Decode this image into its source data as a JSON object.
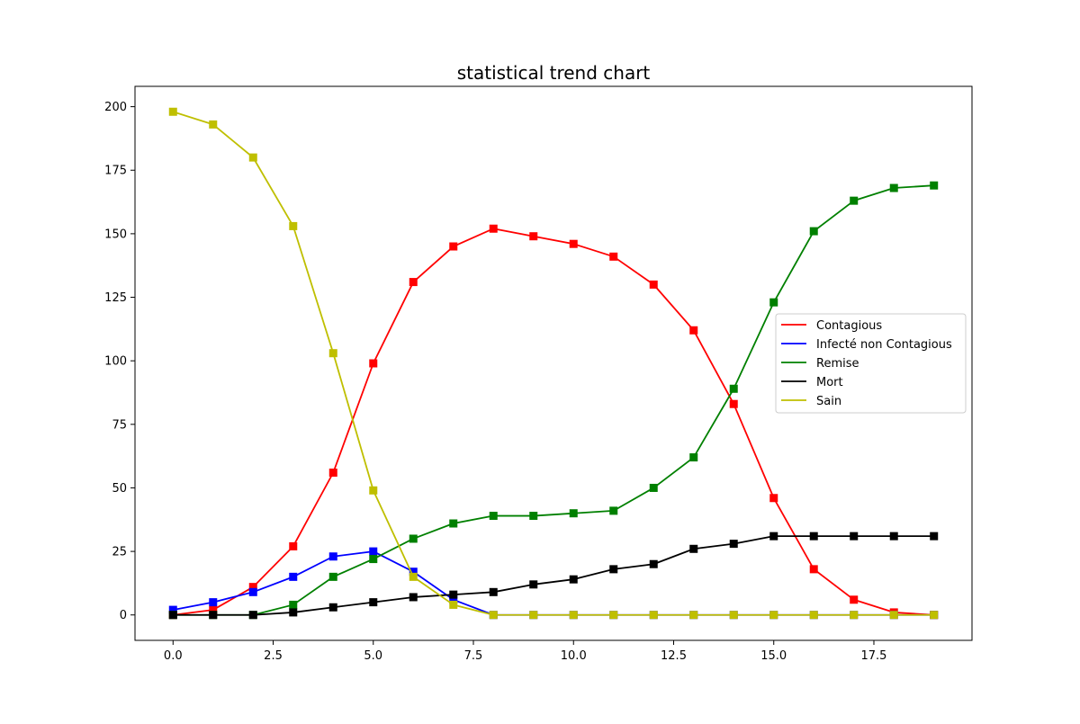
{
  "chart_data": {
    "type": "line",
    "title": "statistical trend chart",
    "xlabel": "",
    "ylabel": "",
    "xlim": [
      -0.95,
      19.95
    ],
    "ylim": [
      -10,
      208
    ],
    "x_ticks": [
      0.0,
      2.5,
      5.0,
      7.5,
      10.0,
      12.5,
      15.0,
      17.5
    ],
    "x_tick_labels": [
      "0.0",
      "2.5",
      "5.0",
      "7.5",
      "10.0",
      "12.5",
      "15.0",
      "17.5"
    ],
    "y_ticks": [
      0,
      25,
      50,
      75,
      100,
      125,
      150,
      175,
      200
    ],
    "y_tick_labels": [
      "0",
      "25",
      "50",
      "75",
      "100",
      "125",
      "150",
      "175",
      "200"
    ],
    "grid": false,
    "legend_position": "center-right",
    "marker": "square",
    "x": [
      0,
      1,
      2,
      3,
      4,
      5,
      6,
      7,
      8,
      9,
      10,
      11,
      12,
      13,
      14,
      15,
      16,
      17,
      18,
      19
    ],
    "series": [
      {
        "name": "Contagious",
        "color": "#ff0000",
        "values": [
          0,
          2,
          11,
          27,
          56,
          99,
          131,
          145,
          152,
          149,
          146,
          141,
          130,
          112,
          83,
          46,
          18,
          6,
          1,
          0
        ]
      },
      {
        "name": "Infecté non Contagious",
        "color": "#0000ff",
        "values": [
          2,
          5,
          9,
          15,
          23,
          25,
          17,
          6,
          0,
          0,
          0,
          0,
          0,
          0,
          0,
          0,
          0,
          0,
          0,
          0
        ]
      },
      {
        "name": "Remise",
        "color": "#008000",
        "values": [
          0,
          0,
          0,
          4,
          15,
          22,
          30,
          36,
          39,
          39,
          40,
          41,
          50,
          62,
          89,
          123,
          151,
          163,
          168,
          169
        ]
      },
      {
        "name": "Mort",
        "color": "#000000",
        "values": [
          0,
          0,
          0,
          1,
          3,
          5,
          7,
          8,
          9,
          12,
          14,
          18,
          20,
          26,
          28,
          31,
          31,
          31,
          31,
          31
        ]
      },
      {
        "name": "Sain",
        "color": "#bfbf00",
        "values": [
          198,
          193,
          180,
          153,
          103,
          49,
          15,
          4,
          0,
          0,
          0,
          0,
          0,
          0,
          0,
          0,
          0,
          0,
          0,
          0
        ]
      }
    ]
  }
}
